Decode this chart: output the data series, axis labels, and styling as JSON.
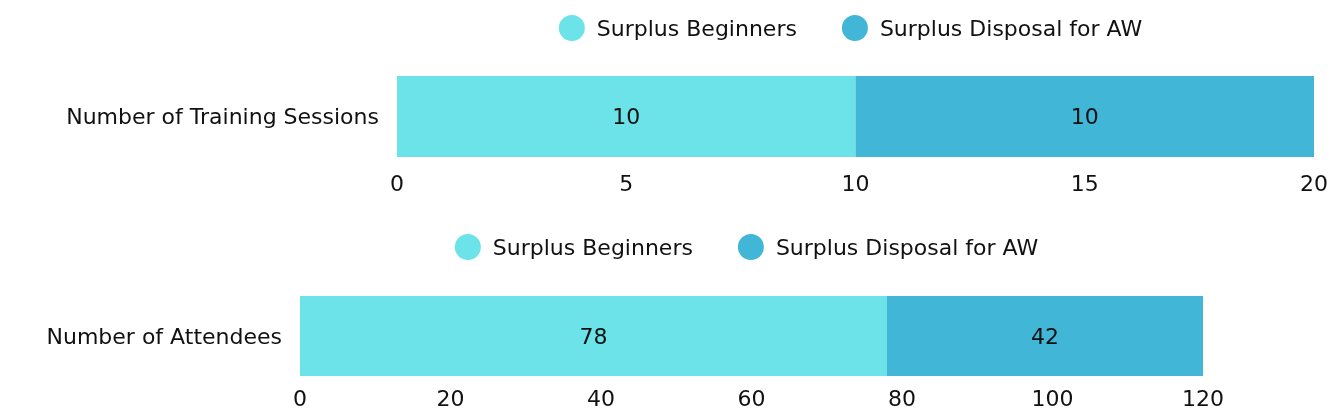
{
  "chart_data": [
    {
      "type": "bar",
      "orientation": "horizontal",
      "stacked": true,
      "categories": [
        "Number of Training Sessions"
      ],
      "series": [
        {
          "name": "Surplus Beginners",
          "color": "#6be3e8",
          "values": [
            10
          ]
        },
        {
          "name": "Surplus Disposal for AW",
          "color": "#42b6d6",
          "values": [
            10
          ]
        }
      ],
      "xlim": [
        0,
        20
      ],
      "xticks": [
        0,
        5,
        10,
        15,
        20
      ],
      "data_labels": true,
      "legend": "top",
      "grid": false
    },
    {
      "type": "bar",
      "orientation": "horizontal",
      "stacked": true,
      "categories": [
        "Number of Attendees"
      ],
      "series": [
        {
          "name": "Surplus Beginners",
          "color": "#6be3e8",
          "values": [
            78
          ]
        },
        {
          "name": "Surplus Disposal for AW",
          "color": "#42b6d6",
          "values": [
            42
          ]
        }
      ],
      "xlim": [
        0,
        120
      ],
      "xticks": [
        0,
        20,
        40,
        60,
        80,
        100,
        120
      ],
      "data_labels": true,
      "legend": "top",
      "grid": false
    }
  ]
}
